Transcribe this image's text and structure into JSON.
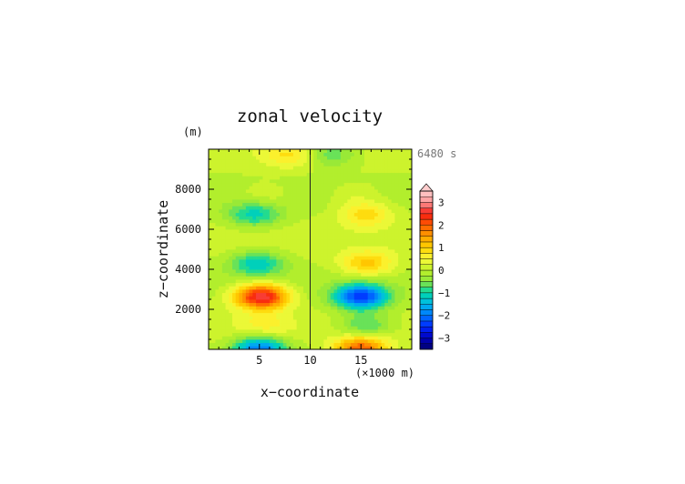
{
  "chart_data": {
    "type": "heatmap",
    "title": "zonal velocity",
    "xlabel": "x−coordinate",
    "ylabel": "z−coordinate",
    "x_unit_note": "(×1000 m)",
    "y_unit_note": "(m)",
    "time_label": "6480 s",
    "xlim": [
      0,
      20
    ],
    "ylim": [
      0,
      10000
    ],
    "x_ticks": [
      "5",
      "10",
      "15"
    ],
    "y_ticks": [
      "2000",
      "4000",
      "6000",
      "8000"
    ],
    "colorbar": {
      "levels": [
        -3.5,
        -3.25,
        -3,
        -2.75,
        -2.5,
        -2.25,
        -2,
        -1.75,
        -1.5,
        -1.25,
        -1,
        -0.75,
        -0.5,
        -0.25,
        0,
        0.25,
        0.5,
        0.75,
        1,
        1.25,
        1.5,
        1.75,
        2,
        2.25,
        2.5,
        2.75,
        3,
        3.25,
        3.5
      ],
      "tick_labels": [
        "−3",
        "−2",
        "−1",
        "0",
        "1",
        "2",
        "3"
      ],
      "tick_values": [
        -3,
        -2,
        -1,
        0,
        1,
        2,
        3
      ],
      "extend": "max"
    },
    "cells": [
      {
        "xc": 5.2,
        "zc": 2650,
        "amp": 2.8
      },
      {
        "xc": 15.0,
        "zc": 2650,
        "amp": -2.4
      },
      {
        "xc": 4.8,
        "zc": 4300,
        "amp": -1.2
      },
      {
        "xc": 15.6,
        "zc": 4300,
        "amp": 1.1
      },
      {
        "xc": 4.5,
        "zc": 6750,
        "amp": -1.1
      },
      {
        "xc": 15.5,
        "zc": 6750,
        "amp": 0.9
      },
      {
        "xc": 5.0,
        "zc": 60,
        "amp": -2.0
      },
      {
        "xc": 15.0,
        "zc": 60,
        "amp": 2.0
      },
      {
        "xc": 5.5,
        "zc": 1200,
        "amp": 0.5
      },
      {
        "xc": 15.5,
        "zc": 1200,
        "amp": -0.9
      },
      {
        "xc": 8.0,
        "zc": 9750,
        "amp": 0.7
      },
      {
        "xc": 12.0,
        "zc": 9750,
        "amp": -0.8
      },
      {
        "xc": 5.5,
        "zc": 7700,
        "amp": 0.3
      },
      {
        "xc": 14.5,
        "zc": 7700,
        "amp": 0.3
      }
    ]
  }
}
